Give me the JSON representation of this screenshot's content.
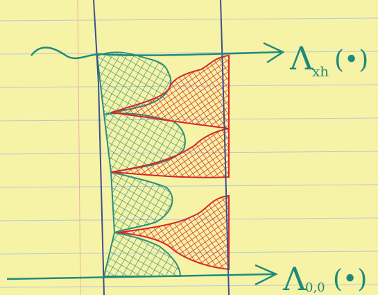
{
  "labels": [
    {
      "symbol": "Λ",
      "subscript": "xh",
      "argument": "(•)"
    },
    {
      "symbol": "Λ",
      "subscript": "0,0",
      "argument": "(•)"
    }
  ]
}
